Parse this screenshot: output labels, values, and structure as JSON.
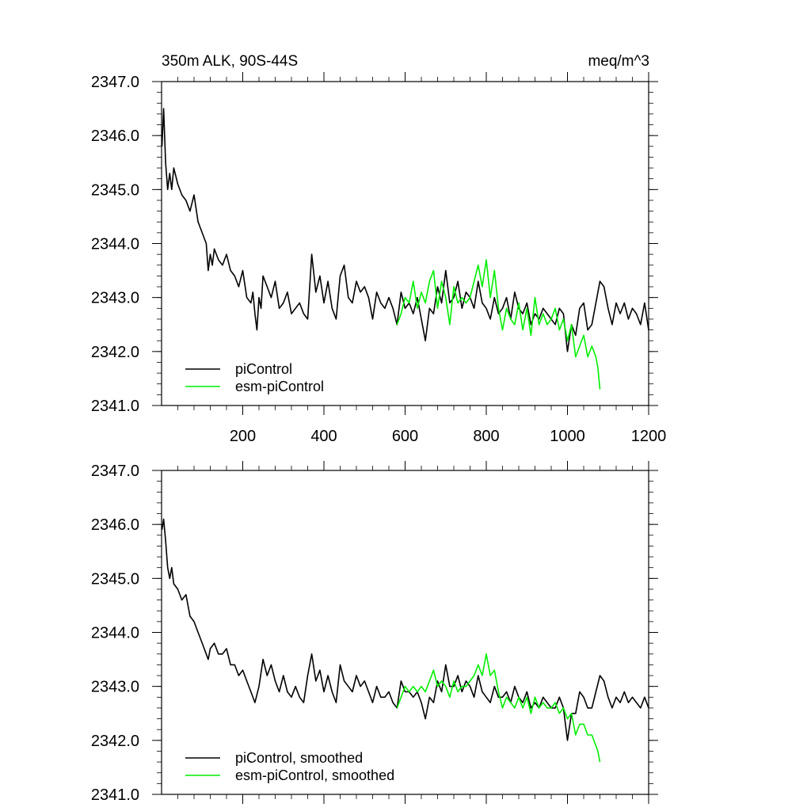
{
  "figure": {
    "title_left": "350m ALK, 90S-44S",
    "title_right": "meq/m^3"
  },
  "chart_data": [
    {
      "type": "line",
      "panel": "top",
      "xlim": [
        0,
        1200
      ],
      "ylim": [
        2341.0,
        2347.0
      ],
      "x_ticks": [
        200,
        400,
        600,
        800,
        1000,
        1200
      ],
      "x_tick_labels": [
        "200",
        "400",
        "600",
        "800",
        "1000",
        "1200"
      ],
      "y_ticks": [
        2341.0,
        2342.0,
        2343.0,
        2344.0,
        2345.0,
        2346.0,
        2347.0
      ],
      "y_tick_labels": [
        "2341.0",
        "2342.0",
        "2343.0",
        "2344.0",
        "2345.0",
        "2346.0",
        "2347.0"
      ],
      "legend_position": "bottom-left",
      "series": [
        {
          "name": "piControl",
          "color": "#000000",
          "x": [
            1,
            5,
            10,
            15,
            20,
            25,
            30,
            40,
            50,
            60,
            70,
            80,
            90,
            100,
            110,
            115,
            120,
            125,
            130,
            140,
            150,
            160,
            170,
            180,
            190,
            200,
            210,
            220,
            225,
            230,
            235,
            240,
            245,
            250,
            260,
            270,
            280,
            290,
            300,
            310,
            320,
            330,
            340,
            350,
            360,
            370,
            380,
            390,
            400,
            410,
            420,
            430,
            440,
            450,
            460,
            470,
            480,
            490,
            500,
            510,
            520,
            530,
            540,
            550,
            560,
            570,
            580,
            590,
            600,
            610,
            620,
            630,
            640,
            650,
            660,
            670,
            680,
            690,
            700,
            710,
            720,
            730,
            740,
            750,
            760,
            770,
            780,
            790,
            800,
            810,
            820,
            830,
            840,
            850,
            860,
            870,
            880,
            890,
            900,
            910,
            920,
            930,
            940,
            950,
            960,
            970,
            980,
            990,
            1000,
            1010,
            1020,
            1030,
            1040,
            1050,
            1060,
            1070,
            1080,
            1090,
            1100,
            1110,
            1120,
            1130,
            1140,
            1150,
            1160,
            1170,
            1180,
            1190,
            1200
          ],
          "values": [
            2345.8,
            2346.5,
            2345.5,
            2345.0,
            2345.3,
            2345.0,
            2345.4,
            2345.1,
            2344.9,
            2344.8,
            2344.6,
            2344.9,
            2344.4,
            2344.2,
            2344.0,
            2343.5,
            2343.8,
            2343.6,
            2343.9,
            2343.7,
            2343.6,
            2343.8,
            2343.5,
            2343.4,
            2343.2,
            2343.5,
            2343.0,
            2342.9,
            2343.1,
            2342.7,
            2342.4,
            2343.0,
            2342.8,
            2343.4,
            2343.2,
            2343.0,
            2343.3,
            2342.8,
            2342.9,
            2343.1,
            2342.7,
            2342.8,
            2342.9,
            2342.7,
            2342.6,
            2343.8,
            2343.1,
            2343.4,
            2342.9,
            2343.3,
            2342.8,
            2342.6,
            2343.4,
            2343.6,
            2343.0,
            2342.9,
            2343.3,
            2343.1,
            2343.2,
            2343.0,
            2342.6,
            2343.1,
            2342.9,
            2342.8,
            2343.0,
            2342.8,
            2342.5,
            2343.1,
            2342.8,
            2342.9,
            2342.7,
            2343.0,
            2342.6,
            2342.2,
            2342.8,
            2342.7,
            2343.2,
            2342.9,
            2343.5,
            2342.9,
            2343.0,
            2343.3,
            2342.8,
            2343.1,
            2343.0,
            2342.8,
            2343.3,
            2342.9,
            2342.8,
            2342.6,
            2343.0,
            2342.7,
            2342.8,
            2343.0,
            2342.6,
            2343.1,
            2342.8,
            2342.7,
            2342.9,
            2342.5,
            2342.7,
            2342.6,
            2342.8,
            2342.7,
            2342.6,
            2342.5,
            2342.8,
            2342.7,
            2342.0,
            2342.5,
            2342.3,
            2342.8,
            2342.9,
            2342.4,
            2342.5,
            2342.9,
            2343.3,
            2343.2,
            2342.8,
            2342.5,
            2342.9,
            2342.7,
            2342.9,
            2342.6,
            2342.8,
            2342.7,
            2342.5,
            2342.9,
            2342.4
          ]
        },
        {
          "name": "esm-piControl",
          "color": "#00ee00",
          "x": [
            580,
            590,
            600,
            610,
            620,
            630,
            640,
            650,
            660,
            670,
            680,
            690,
            700,
            710,
            720,
            730,
            740,
            750,
            760,
            770,
            780,
            790,
            800,
            810,
            820,
            830,
            840,
            850,
            860,
            870,
            880,
            890,
            900,
            910,
            920,
            930,
            940,
            950,
            960,
            970,
            980,
            990,
            1000,
            1010,
            1020,
            1030,
            1040,
            1050,
            1060,
            1070,
            1075,
            1080
          ],
          "values": [
            2342.5,
            2342.7,
            2343.0,
            2342.9,
            2343.3,
            2342.8,
            2343.1,
            2342.9,
            2343.3,
            2343.5,
            2342.8,
            2343.3,
            2343.0,
            2342.5,
            2343.2,
            2342.9,
            2343.0,
            2342.9,
            2343.0,
            2343.3,
            2343.6,
            2343.2,
            2343.7,
            2343.0,
            2343.5,
            2342.8,
            2342.4,
            2342.8,
            2342.6,
            2342.5,
            2342.9,
            2342.4,
            2342.8,
            2342.3,
            2343.0,
            2342.5,
            2342.7,
            2342.5,
            2342.6,
            2342.8,
            2342.4,
            2342.6,
            2342.2,
            2342.5,
            2341.9,
            2342.1,
            2342.3,
            2341.9,
            2342.1,
            2341.9,
            2341.7,
            2341.3
          ]
        }
      ]
    },
    {
      "type": "line",
      "panel": "bottom",
      "xlim": [
        0,
        1200
      ],
      "ylim": [
        2341.0,
        2347.0
      ],
      "x_ticks": [
        200,
        400,
        600,
        800,
        1000,
        1200
      ],
      "y_ticks": [
        2341.0,
        2342.0,
        2343.0,
        2344.0,
        2345.0,
        2346.0,
        2347.0
      ],
      "y_tick_labels": [
        "2341.0",
        "2342.0",
        "2343.0",
        "2344.0",
        "2345.0",
        "2346.0",
        "2347.0"
      ],
      "legend_position": "bottom-left",
      "series": [
        {
          "name": "piControl, smoothed",
          "color": "#000000",
          "x": [
            1,
            5,
            10,
            15,
            20,
            25,
            30,
            40,
            50,
            60,
            70,
            80,
            90,
            100,
            110,
            115,
            120,
            130,
            140,
            150,
            160,
            170,
            180,
            190,
            200,
            210,
            220,
            230,
            240,
            250,
            260,
            270,
            280,
            290,
            300,
            310,
            320,
            330,
            340,
            350,
            360,
            370,
            380,
            390,
            400,
            410,
            420,
            430,
            440,
            450,
            460,
            470,
            480,
            490,
            500,
            510,
            520,
            530,
            540,
            550,
            560,
            570,
            580,
            590,
            600,
            610,
            620,
            630,
            640,
            650,
            660,
            670,
            680,
            690,
            700,
            710,
            720,
            730,
            740,
            750,
            760,
            770,
            780,
            790,
            800,
            810,
            820,
            830,
            840,
            850,
            860,
            870,
            880,
            890,
            900,
            910,
            920,
            930,
            940,
            950,
            960,
            970,
            980,
            990,
            1000,
            1010,
            1020,
            1030,
            1040,
            1050,
            1060,
            1070,
            1080,
            1090,
            1100,
            1110,
            1120,
            1130,
            1140,
            1150,
            1160,
            1170,
            1180,
            1190,
            1200
          ],
          "values": [
            2345.9,
            2346.1,
            2345.7,
            2345.2,
            2345.0,
            2345.2,
            2344.9,
            2344.8,
            2344.6,
            2344.7,
            2344.3,
            2344.2,
            2344.0,
            2343.8,
            2343.6,
            2343.5,
            2343.7,
            2343.8,
            2343.6,
            2343.6,
            2343.7,
            2343.4,
            2343.4,
            2343.2,
            2343.3,
            2343.1,
            2342.9,
            2342.7,
            2343.0,
            2343.5,
            2343.2,
            2343.4,
            2343.1,
            2342.9,
            2343.2,
            2342.9,
            2342.8,
            2343.0,
            2342.8,
            2342.7,
            2343.2,
            2343.6,
            2343.1,
            2343.3,
            2342.9,
            2343.2,
            2342.9,
            2342.7,
            2343.4,
            2343.1,
            2343.0,
            2342.9,
            2343.2,
            2343.0,
            2343.1,
            2342.9,
            2342.7,
            2343.0,
            2342.8,
            2342.8,
            2342.9,
            2342.7,
            2342.6,
            2343.1,
            2342.9,
            2342.9,
            2342.8,
            2342.9,
            2342.7,
            2342.4,
            2342.8,
            2342.7,
            2343.1,
            2342.9,
            2343.4,
            2343.0,
            2343.0,
            2343.2,
            2342.9,
            2343.1,
            2343.0,
            2342.8,
            2343.2,
            2342.9,
            2342.8,
            2342.7,
            2343.0,
            2342.8,
            2342.8,
            2342.9,
            2342.7,
            2343.0,
            2342.8,
            2342.7,
            2342.9,
            2342.6,
            2342.7,
            2342.6,
            2342.8,
            2342.7,
            2342.6,
            2342.6,
            2342.8,
            2342.6,
            2342.0,
            2342.5,
            2342.5,
            2342.9,
            2342.8,
            2342.6,
            2342.6,
            2342.9,
            2343.2,
            2343.1,
            2342.8,
            2342.6,
            2342.8,
            2342.7,
            2342.9,
            2342.7,
            2342.8,
            2342.7,
            2342.6,
            2342.8,
            2342.6
          ]
        },
        {
          "name": "esm-piControl, smoothed",
          "color": "#00ee00",
          "x": [
            580,
            590,
            600,
            610,
            620,
            630,
            640,
            650,
            660,
            670,
            680,
            690,
            700,
            710,
            720,
            730,
            740,
            750,
            760,
            770,
            780,
            790,
            800,
            810,
            820,
            830,
            840,
            850,
            860,
            870,
            880,
            890,
            900,
            910,
            920,
            930,
            940,
            950,
            960,
            970,
            980,
            990,
            1000,
            1010,
            1020,
            1030,
            1040,
            1050,
            1060,
            1070,
            1075,
            1080
          ],
          "values": [
            2342.6,
            2342.8,
            2343.0,
            2342.9,
            2343.0,
            2342.9,
            2343.0,
            2342.9,
            2343.1,
            2343.3,
            2343.0,
            2343.1,
            2343.0,
            2342.8,
            2343.1,
            2342.9,
            2343.0,
            2343.0,
            2343.1,
            2343.2,
            2343.4,
            2343.2,
            2343.6,
            2343.2,
            2343.3,
            2342.9,
            2342.6,
            2342.8,
            2342.7,
            2342.6,
            2342.8,
            2342.6,
            2342.8,
            2342.5,
            2342.8,
            2342.6,
            2342.7,
            2342.6,
            2342.6,
            2342.7,
            2342.5,
            2342.6,
            2342.4,
            2342.5,
            2342.1,
            2342.3,
            2342.3,
            2342.1,
            2342.1,
            2341.9,
            2341.8,
            2341.6
          ]
        }
      ]
    }
  ]
}
